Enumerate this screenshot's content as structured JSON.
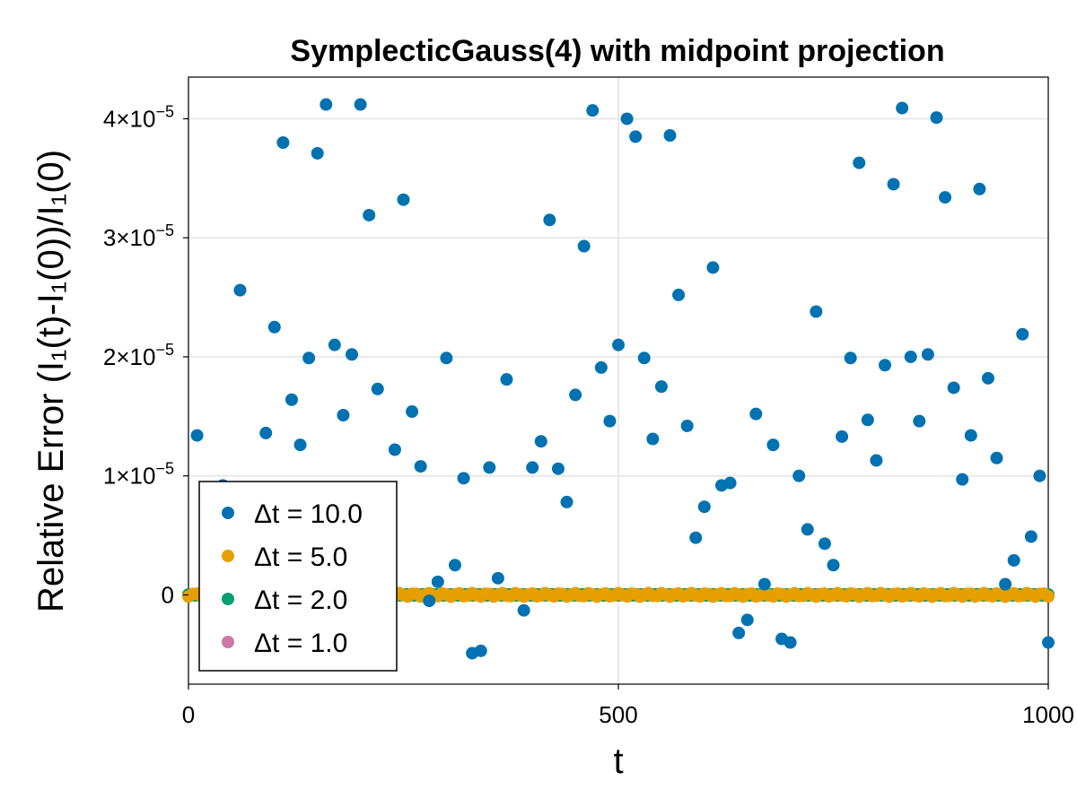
{
  "chart_data": {
    "type": "scatter",
    "title": "SymplecticGauss(4) with midpoint projection",
    "xlabel": "t",
    "ylabel": "Relative Error (I₁(t)-I₁(0))/I₁(0)",
    "xlim": [
      0,
      1000
    ],
    "ylim": [
      -7.5e-06,
      4.35e-05
    ],
    "x_ticks": [
      0,
      500,
      1000
    ],
    "x_tick_labels": [
      "0",
      "500",
      "1000"
    ],
    "y_ticks": [
      0,
      1e-05,
      2e-05,
      3e-05,
      4e-05
    ],
    "y_tick_labels": [
      {
        "mantissa": "0",
        "exponent": ""
      },
      {
        "mantissa": "1×10",
        "exponent": "−5"
      },
      {
        "mantissa": "2×10",
        "exponent": "−5"
      },
      {
        "mantissa": "3×10",
        "exponent": "−5"
      },
      {
        "mantissa": "4×10",
        "exponent": "−5"
      }
    ],
    "grid": true,
    "legend_position": "bottom-left",
    "series": [
      {
        "name": "Δt = 10.0",
        "color": "#0072b2",
        "x": [
          10,
          20,
          40,
          60,
          90,
          100,
          110,
          120,
          130,
          140,
          150,
          160,
          170,
          180,
          190,
          200,
          210,
          220,
          240,
          250,
          260,
          270,
          280,
          290,
          300,
          310,
          320,
          330,
          340,
          350,
          360,
          370,
          390,
          400,
          410,
          420,
          430,
          440,
          450,
          460,
          470,
          480,
          490,
          500,
          510,
          520,
          530,
          540,
          550,
          560,
          570,
          580,
          590,
          600,
          610,
          620,
          630,
          640,
          650,
          660,
          670,
          680,
          690,
          700,
          710,
          720,
          730,
          740,
          750,
          760,
          770,
          780,
          790,
          800,
          810,
          820,
          830,
          840,
          850,
          860,
          870,
          880,
          890,
          900,
          910,
          920,
          930,
          940,
          950,
          960,
          970,
          980,
          990,
          1000
        ],
        "y": [
          1.34e-05,
          5e-06,
          9.2e-06,
          2.56e-05,
          1.36e-05,
          2.25e-05,
          3.8e-05,
          1.64e-05,
          1.26e-05,
          1.99e-05,
          3.71e-05,
          4.12e-05,
          2.1e-05,
          1.51e-05,
          2.02e-05,
          4.12e-05,
          3.19e-05,
          1.73e-05,
          1.22e-05,
          3.32e-05,
          1.54e-05,
          1.08e-05,
          -5e-07,
          1.1e-06,
          1.99e-05,
          2.5e-06,
          9.8e-06,
          -4.9e-06,
          -4.7e-06,
          1.07e-05,
          1.4e-06,
          1.81e-05,
          -1.3e-06,
          1.07e-05,
          1.29e-05,
          3.15e-05,
          1.06e-05,
          7.8e-06,
          1.68e-05,
          2.93e-05,
          4.07e-05,
          1.91e-05,
          1.46e-05,
          2.1e-05,
          4e-05,
          3.85e-05,
          1.99e-05,
          1.31e-05,
          1.75e-05,
          3.86e-05,
          2.52e-05,
          1.42e-05,
          4.8e-06,
          7.4e-06,
          2.75e-05,
          9.2e-06,
          9.4e-06,
          -3.2e-06,
          -2.1e-06,
          1.52e-05,
          9e-07,
          1.26e-05,
          -3.7e-06,
          -4e-06,
          1e-05,
          5.5e-06,
          2.38e-05,
          4.3e-06,
          2.5e-06,
          1.33e-05,
          1.99e-05,
          3.63e-05,
          1.47e-05,
          1.13e-05,
          1.93e-05,
          3.45e-05,
          4.09e-05,
          2e-05,
          1.46e-05,
          2.02e-05,
          4.01e-05,
          3.34e-05,
          1.74e-05,
          9.7e-06,
          1.34e-05,
          3.41e-05,
          1.82e-05,
          1.15e-05,
          9e-07,
          2.9e-06,
          2.19e-05,
          4.9e-06,
          1e-05,
          -4e-06
        ]
      },
      {
        "name": "Δt = 5.0",
        "color": "#e69f00",
        "x_step": 5,
        "amplitude": 1.5e-07
      },
      {
        "name": "Δt = 2.0",
        "color": "#009e73",
        "x_step": 2,
        "amplitude": 4e-08
      },
      {
        "name": "Δt = 1.0",
        "color": "#cc79a7",
        "x_step": 1,
        "amplitude": 1e-08
      }
    ]
  }
}
